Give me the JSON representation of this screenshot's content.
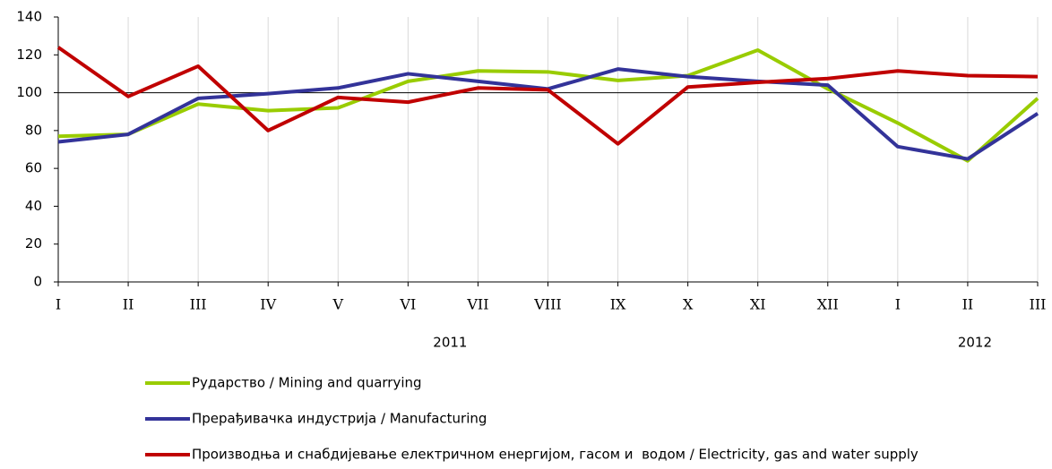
{
  "chart_data": {
    "type": "line",
    "categories": [
      "I",
      "II",
      "III",
      "IV",
      "V",
      "VI",
      "VII",
      "VIII",
      "IX",
      "X",
      "XI",
      "XII",
      "I",
      "II",
      "III"
    ],
    "x_groups": [
      {
        "label": "2011",
        "span": 12
      },
      {
        "label": "2012",
        "span": 3
      }
    ],
    "series": [
      {
        "name": "Рударство / Mining and quarrying",
        "color": "#99cc00",
        "values": [
          77,
          78,
          94,
          90.5,
          92,
          106,
          111.5,
          111,
          106.5,
          109,
          122.5,
          102,
          84,
          64,
          97
        ]
      },
      {
        "name": "Прерађивачка индустрија / Manufacturing",
        "color": "#333399",
        "values": [
          74,
          78,
          97,
          99.5,
          102.5,
          110,
          106,
          102,
          112.5,
          108.5,
          106,
          104,
          71.5,
          65,
          89
        ]
      },
      {
        "name": "Производња и снабдијевање електричном енергијом, гасом и  водом / Electricity, gas and water supply",
        "color": "#c00000",
        "values": [
          124,
          98,
          114,
          80,
          97.5,
          95,
          102.5,
          101.5,
          73,
          103,
          105.5,
          107.5,
          111.5,
          109,
          108.5
        ]
      }
    ],
    "ylim": [
      0,
      140
    ],
    "yticks": [
      0,
      20,
      40,
      60,
      80,
      100,
      120,
      140
    ],
    "reference_line": 100,
    "grid": "x",
    "legend": "bottom"
  }
}
